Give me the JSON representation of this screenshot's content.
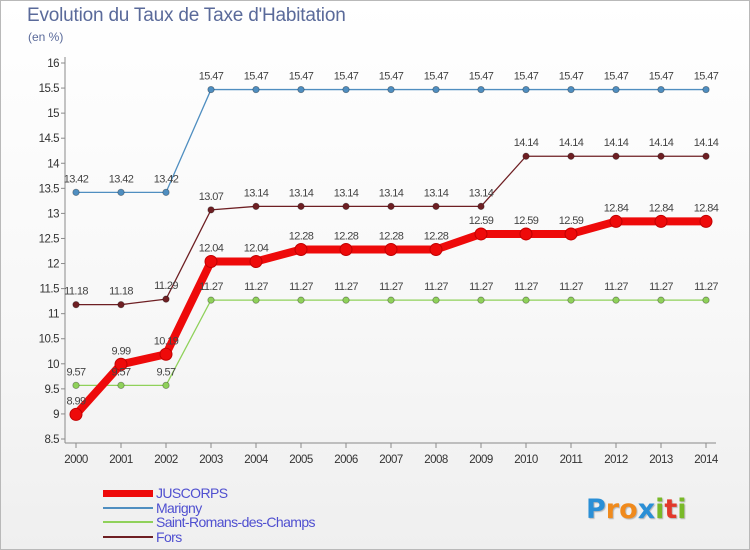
{
  "title": "Evolution du Taux de Taxe d'Habitation",
  "subtitle": "(en %)",
  "logo": {
    "text": "Proxiti",
    "letters": [
      {
        "ch": "P",
        "color": "#2a8fd6"
      },
      {
        "ch": "r",
        "color": "#f08a1c"
      },
      {
        "ch": "o",
        "color": "#f08a1c"
      },
      {
        "ch": "x",
        "color": "#2a8fd6"
      },
      {
        "ch": "i",
        "color": "#79b928"
      },
      {
        "ch": "t",
        "color": "#e2392b"
      },
      {
        "ch": "i",
        "color": "#79b928"
      }
    ]
  },
  "chart_data": {
    "type": "line",
    "title": "Evolution du Taux de Taxe d'Habitation",
    "ylabel": "(en %)",
    "xlabel": "",
    "x": [
      2000,
      2001,
      2002,
      2003,
      2004,
      2005,
      2006,
      2007,
      2008,
      2009,
      2010,
      2011,
      2012,
      2013,
      2014
    ],
    "ylim": [
      8.5,
      16
    ],
    "yticks": [
      "8.5",
      "9",
      "9.5",
      "10",
      "10.5",
      "11",
      "11.5",
      "12",
      "12.5",
      "13",
      "13.5",
      "14",
      "14.5",
      "15",
      "15.5",
      "16"
    ],
    "grid": false,
    "legend_position": "bottom-left",
    "series": [
      {
        "name": "JUSCORPS",
        "color": "#ee0a0a",
        "values": [
          8.99,
          9.99,
          10.19,
          12.04,
          12.04,
          12.28,
          12.28,
          12.28,
          12.28,
          12.59,
          12.59,
          12.59,
          12.84,
          12.84,
          12.84
        ],
        "labels": [
          "8.99",
          "9.99",
          "10.19",
          "12.04",
          "12.04",
          "12.28",
          "12.28",
          "12.28",
          "12.28",
          "12.59",
          "12.59",
          "12.59",
          "12.84",
          "12.84",
          "12.84"
        ]
      },
      {
        "name": "Marigny",
        "color": "#4f8ec0",
        "values": [
          13.42,
          13.42,
          13.42,
          15.47,
          15.47,
          15.47,
          15.47,
          15.47,
          15.47,
          15.47,
          15.47,
          15.47,
          15.47,
          15.47,
          15.47
        ],
        "labels": [
          "13.42",
          "13.42",
          "13.42",
          "15.47",
          "15.47",
          "15.47",
          "15.47",
          "15.47",
          "15.47",
          "15.47",
          "15.47",
          "15.47",
          "15.47",
          "15.47",
          "15.47"
        ]
      },
      {
        "name": "Saint-Romans-des-Champs",
        "color": "#8fd15a",
        "values": [
          9.57,
          9.57,
          9.57,
          11.27,
          11.27,
          11.27,
          11.27,
          11.27,
          11.27,
          11.27,
          11.27,
          11.27,
          11.27,
          11.27,
          11.27
        ],
        "labels": [
          "9.57",
          "9.57",
          "9.57",
          "11.27",
          "11.27",
          "11.27",
          "11.27",
          "11.27",
          "11.27",
          "11.27",
          "11.27",
          "11.27",
          "11.27",
          "11.27",
          "11.27"
        ]
      },
      {
        "name": "Fors",
        "color": "#6e1f23",
        "values": [
          11.18,
          11.18,
          11.29,
          13.07,
          13.14,
          13.14,
          13.14,
          13.14,
          13.14,
          13.14,
          14.14,
          14.14,
          14.14,
          14.14,
          14.14
        ],
        "labels": [
          "11.18",
          "11.18",
          "11.29",
          "13.07",
          "13.14",
          "13.14",
          "13.14",
          "13.14",
          "13.14",
          "13.14",
          "14.14",
          "14.14",
          "14.14",
          "14.14",
          "14.14"
        ]
      }
    ]
  }
}
